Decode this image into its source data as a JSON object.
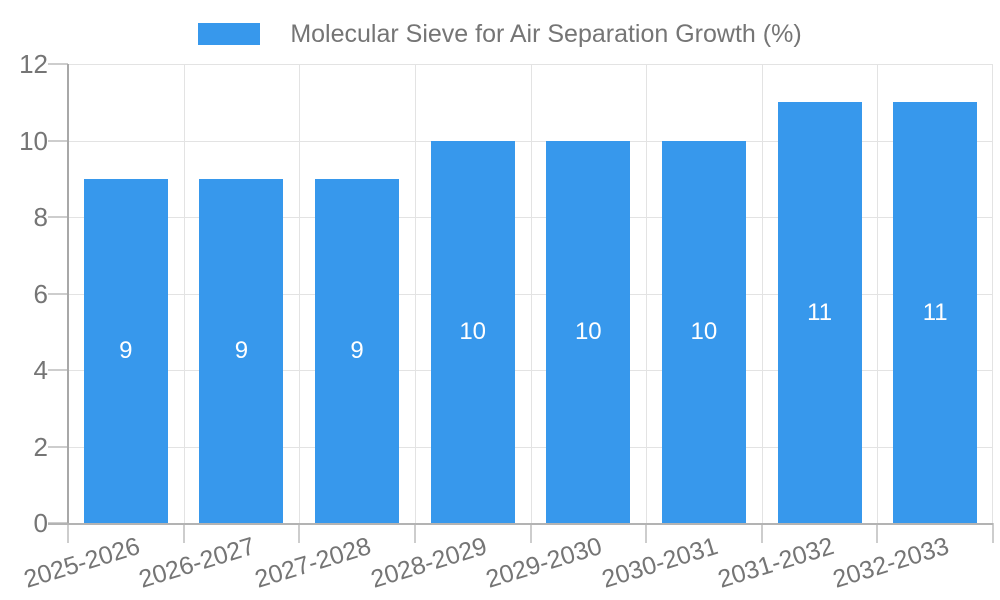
{
  "chart_data": {
    "type": "bar",
    "title": "",
    "xlabel": "",
    "ylabel": "",
    "legend": {
      "label": "Molecular Sieve for Air Separation Growth (%)",
      "position": "top"
    },
    "categories": [
      "2025-2026",
      "2026-2027",
      "2027-2028",
      "2028-2029",
      "2029-2030",
      "2030-2031",
      "2031-2032",
      "2032-2033"
    ],
    "values": [
      9,
      9,
      9,
      10,
      10,
      10,
      11,
      11
    ],
    "ylim": [
      0,
      12
    ],
    "yticks": [
      0,
      2,
      4,
      6,
      8,
      10,
      12
    ],
    "grid": {
      "horizontal": "at-yticks",
      "vertical": "at-category-boundaries"
    },
    "colors": {
      "bar": "#3798ec",
      "bar_label": "#ffffff",
      "axis_label": "#757575",
      "gridline": "#e3e3e3",
      "y_axis_line": "#a8a8a8",
      "x_axis_line": "#b3b3b3",
      "tick": "#cdcdcd",
      "background": "#ffffff"
    }
  }
}
